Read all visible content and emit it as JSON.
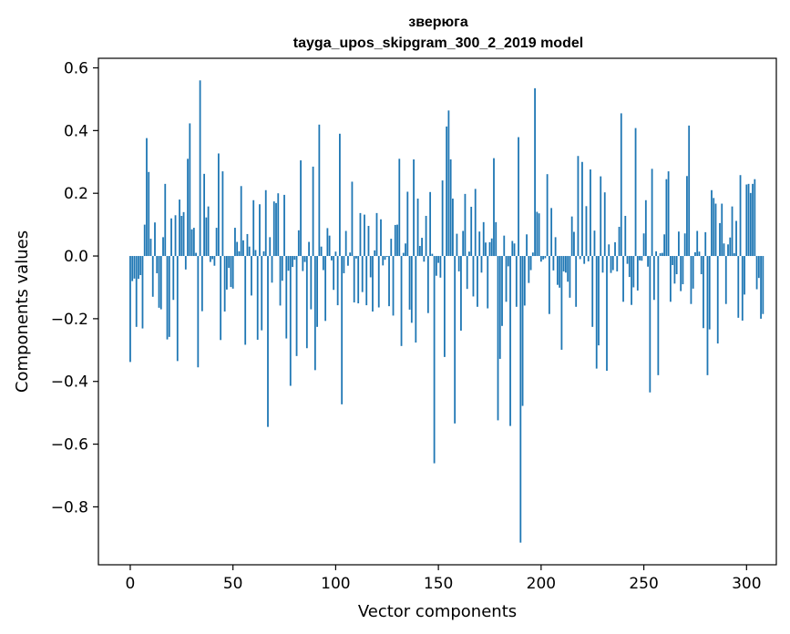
{
  "chart_data": {
    "type": "bar",
    "title": "зверюга",
    "subtitle": "tayga_upos_skipgram_300_2_2019 model",
    "xlabel": "Vector components",
    "ylabel": "Components values",
    "xlim": [
      -15.5,
      314.5
    ],
    "ylim": [
      -0.9847,
      0.6305
    ],
    "xticks": [
      0,
      50,
      100,
      150,
      200,
      250,
      300
    ],
    "yticks": [
      0.6,
      0.4,
      0.2,
      0.0,
      -0.2,
      -0.4,
      -0.6,
      -0.8
    ],
    "ytick_labels": [
      "0.6",
      "0.4",
      "0.2",
      "0.0",
      "−0.2",
      "−0.4",
      "−0.6",
      "−0.8"
    ],
    "bar_color": "#1f77b4",
    "grid": false,
    "values": [
      -0.338,
      -0.08,
      -0.072,
      -0.226,
      -0.073,
      -0.061,
      -0.231,
      0.1,
      0.376,
      0.268,
      0.055,
      -0.13,
      0.107,
      -0.055,
      -0.165,
      -0.17,
      0.06,
      0.23,
      -0.266,
      -0.258,
      0.12,
      -0.14,
      0.13,
      -0.335,
      0.18,
      0.128,
      0.14,
      -0.043,
      0.31,
      0.423,
      0.085,
      0.09,
      0.01,
      -0.355,
      0.56,
      -0.176,
      0.262,
      0.123,
      0.158,
      -0.019,
      -0.01,
      -0.031,
      0.09,
      0.327,
      -0.268,
      0.27,
      -0.177,
      -0.107,
      -0.038,
      -0.099,
      -0.104,
      0.09,
      0.045,
      0.015,
      0.223,
      0.05,
      -0.283,
      0.07,
      0.03,
      -0.126,
      0.178,
      0.019,
      -0.267,
      0.165,
      -0.237,
      0.015,
      0.21,
      -0.545,
      0.06,
      -0.085,
      0.174,
      0.169,
      0.2,
      -0.158,
      -0.079,
      0.195,
      -0.263,
      -0.047,
      -0.414,
      -0.035,
      -0.012,
      -0.319,
      0.082,
      0.305,
      -0.048,
      -0.019,
      -0.294,
      0.045,
      -0.17,
      0.285,
      -0.364,
      -0.226,
      0.419,
      0.03,
      -0.045,
      -0.207,
      0.089,
      0.065,
      -0.014,
      -0.108,
      0.014,
      -0.157,
      0.39,
      -0.473,
      -0.055,
      0.08,
      -0.031,
      0.011,
      0.237,
      -0.148,
      -0.008,
      -0.151,
      0.137,
      -0.115,
      0.132,
      -0.157,
      0.096,
      -0.068,
      -0.177,
      0.018,
      0.137,
      -0.164,
      0.117,
      -0.03,
      -0.012,
      -0.003,
      -0.16,
      0.055,
      -0.19,
      0.099,
      0.1,
      0.31,
      -0.287,
      0.01,
      0.04,
      0.205,
      -0.171,
      -0.213,
      0.308,
      -0.276,
      0.183,
      0.032,
      0.058,
      -0.018,
      0.128,
      -0.182,
      0.204,
      0.007,
      -0.661,
      -0.063,
      -0.022,
      -0.069,
      0.241,
      -0.322,
      0.413,
      0.464,
      0.308,
      0.183,
      -0.534,
      0.071,
      -0.049,
      -0.238,
      0.08,
      0.198,
      -0.105,
      0.014,
      0.157,
      -0.129,
      0.214,
      -0.162,
      0.078,
      -0.053,
      0.108,
      0.043,
      -0.167,
      0.044,
      0.056,
      0.312,
      0.108,
      -0.524,
      -0.328,
      -0.223,
      0.065,
      -0.146,
      -0.033,
      -0.542,
      0.048,
      0.04,
      -0.162,
      0.379,
      -0.914,
      -0.478,
      -0.158,
      0.069,
      -0.086,
      -0.045,
      0.011,
      0.535,
      0.141,
      0.136,
      -0.018,
      -0.011,
      -0.007,
      0.261,
      -0.185,
      0.153,
      -0.046,
      0.06,
      -0.092,
      -0.101,
      -0.299,
      -0.049,
      -0.053,
      -0.082,
      -0.133,
      0.126,
      0.077,
      -0.162,
      0.319,
      -0.01,
      0.3,
      -0.025,
      0.159,
      -0.017,
      0.276,
      -0.226,
      0.081,
      -0.359,
      -0.285,
      0.254,
      -0.053,
      0.203,
      -0.366,
      0.037,
      -0.054,
      -0.045,
      0.044,
      -0.049,
      0.093,
      0.455,
      -0.146,
      0.128,
      -0.025,
      -0.067,
      -0.156,
      -0.1,
      0.408,
      -0.11,
      -0.014,
      -0.015,
      0.072,
      0.178,
      -0.034,
      -0.435,
      0.278,
      -0.14,
      0.015,
      -0.38,
      0.009,
      0.01,
      0.069,
      0.245,
      0.27,
      -0.146,
      -0.029,
      -0.088,
      -0.058,
      0.078,
      -0.112,
      -0.09,
      0.072,
      0.255,
      0.416,
      -0.153,
      -0.104,
      0.012,
      0.08,
      0.014,
      -0.058,
      -0.23,
      0.076,
      -0.38,
      -0.234,
      0.21,
      0.185,
      0.167,
      -0.279,
      0.105,
      0.167,
      0.04,
      -0.153,
      0.037,
      0.059,
      0.158,
      0.009,
      0.112,
      -0.197,
      0.258,
      -0.206,
      -0.123,
      0.228,
      0.23,
      0.201,
      0.23,
      0.245,
      -0.106,
      -0.07,
      -0.2,
      -0.185
    ]
  }
}
